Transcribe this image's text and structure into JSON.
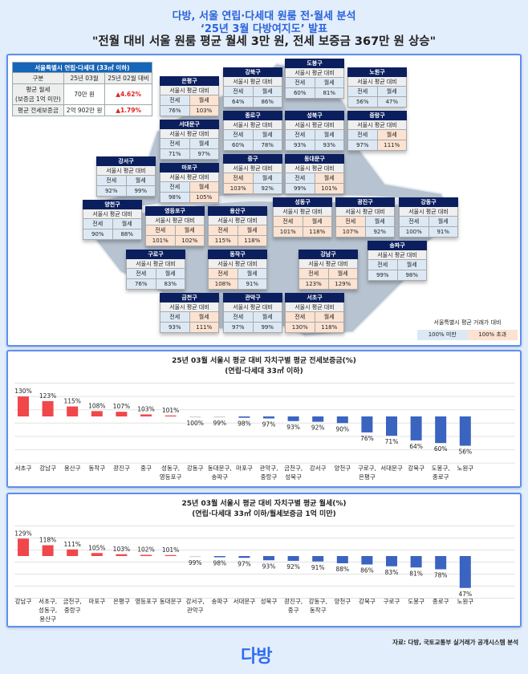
{
  "header": {
    "line1": "다방, 서울 연립·다세대 원룸 전·월세 분석",
    "line2": "‘25년 3월 다방여지도’ 발표",
    "line3": "\"전월 대비 서울 원룸 평균 월세 3만 원, 전세 보증금 367만 원 상승\""
  },
  "summary": {
    "caption": "서울특별시 연립·다세대 (33㎡ 이하)",
    "col_headers": [
      "구분",
      "25년 03월",
      "25년 02월 대비"
    ],
    "rows": [
      {
        "label": "평균 월세\n(보증금 1억 미만)",
        "value": "70만 원",
        "change": "▲4.62%"
      },
      {
        "label": "평균 전세보증금",
        "value": "2억 902만 원",
        "change": "▲1.79%"
      }
    ]
  },
  "map": {
    "subtitle": "서울시 평균 대비",
    "jeonse_label": "전세",
    "wolse_label": "월세",
    "colors": {
      "below": "#dce9f5",
      "above": "#fbe2d1",
      "header": "#0b1f5e"
    },
    "districts": [
      {
        "name": "은평구",
        "jeonse": "76%",
        "wolse": "103%"
      },
      {
        "name": "강북구",
        "jeonse": "64%",
        "wolse": "86%"
      },
      {
        "name": "도봉구",
        "jeonse": "60%",
        "wolse": "81%"
      },
      {
        "name": "노원구",
        "jeonse": "56%",
        "wolse": "47%"
      },
      {
        "name": "서대문구",
        "jeonse": "71%",
        "wolse": "97%"
      },
      {
        "name": "종로구",
        "jeonse": "60%",
        "wolse": "78%"
      },
      {
        "name": "성북구",
        "jeonse": "93%",
        "wolse": "93%"
      },
      {
        "name": "중랑구",
        "jeonse": "97%",
        "wolse": "111%"
      },
      {
        "name": "강서구",
        "jeonse": "92%",
        "wolse": "99%"
      },
      {
        "name": "마포구",
        "jeonse": "98%",
        "wolse": "105%"
      },
      {
        "name": "중구",
        "jeonse": "103%",
        "wolse": "92%"
      },
      {
        "name": "동대문구",
        "jeonse": "99%",
        "wolse": "101%"
      },
      {
        "name": "양천구",
        "jeonse": "90%",
        "wolse": "88%"
      },
      {
        "name": "영등포구",
        "jeonse": "101%",
        "wolse": "102%"
      },
      {
        "name": "용산구",
        "jeonse": "115%",
        "wolse": "118%"
      },
      {
        "name": "성동구",
        "jeonse": "101%",
        "wolse": "118%"
      },
      {
        "name": "광진구",
        "jeonse": "107%",
        "wolse": "92%"
      },
      {
        "name": "강동구",
        "jeonse": "100%",
        "wolse": "91%"
      },
      {
        "name": "송파구",
        "jeonse": "99%",
        "wolse": "98%"
      },
      {
        "name": "구로구",
        "jeonse": "76%",
        "wolse": "83%"
      },
      {
        "name": "동작구",
        "jeonse": "108%",
        "wolse": "91%"
      },
      {
        "name": "강남구",
        "jeonse": "123%",
        "wolse": "129%"
      },
      {
        "name": "금천구",
        "jeonse": "93%",
        "wolse": "111%"
      },
      {
        "name": "관악구",
        "jeonse": "97%",
        "wolse": "99%"
      },
      {
        "name": "서초구",
        "jeonse": "130%",
        "wolse": "118%"
      }
    ]
  },
  "legend": {
    "title": "서울특별시 평균 거래가 대비",
    "below": "100% 미만",
    "above": "100% 초과"
  },
  "chart_data": [
    {
      "type": "bar",
      "title": "25년 03월 서울시 평균 대비 자치구별 평균 전세보증금(%)",
      "subtitle": "(연립·다세대 33㎡ 이하)",
      "baseline": 100,
      "grid": true,
      "categories": [
        "서초구",
        "강남구",
        "용산구",
        "동작구",
        "광진구",
        "중구",
        "성동구,\n영등포구",
        "강동구",
        "동대문구,\n송파구",
        "마포구",
        "관악구,\n중랑구",
        "금천구,\n성북구",
        "강서구",
        "양천구",
        "구로구,\n은평구",
        "서대문구",
        "강북구",
        "도봉구,\n종로구",
        "노원구"
      ],
      "values": [
        130,
        123,
        115,
        108,
        107,
        103,
        101,
        100,
        99,
        98,
        97,
        93,
        92,
        90,
        76,
        71,
        64,
        60,
        56
      ],
      "colors": {
        "above": "#f0474b",
        "below": "#3a64c0",
        "neutral": "#d0d0d0"
      }
    },
    {
      "type": "bar",
      "title": "25년 03월 서울시 평균 대비 자치구별 평균 월세(%)",
      "subtitle": "(연립·다세대 33㎡ 이하/월세보증금 1억 미만)",
      "baseline": 100,
      "grid": true,
      "categories": [
        "강남구",
        "서초구,\n성동구,\n용산구",
        "금천구,\n중랑구",
        "마포구",
        "은평구",
        "영등포구",
        "동대문구",
        "강서구,\n관악구",
        "송파구",
        "서대문구",
        "성북구",
        "광진구,\n중구",
        "강동구,\n동작구",
        "양천구",
        "강북구",
        "구로구",
        "도봉구",
        "종로구",
        "노원구"
      ],
      "values": [
        129,
        118,
        111,
        105,
        103,
        102,
        101,
        99,
        98,
        97,
        93,
        92,
        91,
        88,
        86,
        83,
        81,
        78,
        47
      ],
      "colors": {
        "above": "#f0474b",
        "below": "#3a64c0",
        "neutral": "#d0d0d0"
      }
    }
  ],
  "footer": {
    "source": "자료: 다방, 국토교통부 실거래가 공개시스템 분석",
    "logo": "다방"
  }
}
